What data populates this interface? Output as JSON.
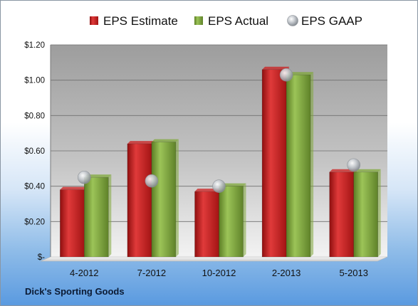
{
  "company": "Dick's Sporting Goods",
  "chart_data": {
    "type": "bar",
    "categories": [
      "4-2012",
      "7-2012",
      "10-2012",
      "2-2013",
      "5-2013"
    ],
    "series": [
      {
        "name": "EPS Estimate",
        "values": [
          0.38,
          0.64,
          0.37,
          1.06,
          0.48
        ],
        "color": "#cc1f1f",
        "kind": "bar"
      },
      {
        "name": "EPS Actual",
        "values": [
          0.45,
          0.65,
          0.4,
          1.03,
          0.48
        ],
        "color": "#7fa83a",
        "kind": "bar"
      },
      {
        "name": "EPS GAAP",
        "values": [
          0.45,
          0.43,
          0.4,
          1.03,
          0.52
        ],
        "color": "#a8adb3",
        "kind": "marker"
      }
    ],
    "y_ticks": [
      "$-",
      "$0.20",
      "$0.40",
      "$0.60",
      "$0.80",
      "$1.00",
      "$1.20"
    ],
    "ylim": [
      0,
      1.2
    ],
    "grid": true,
    "legend_position": "top"
  }
}
